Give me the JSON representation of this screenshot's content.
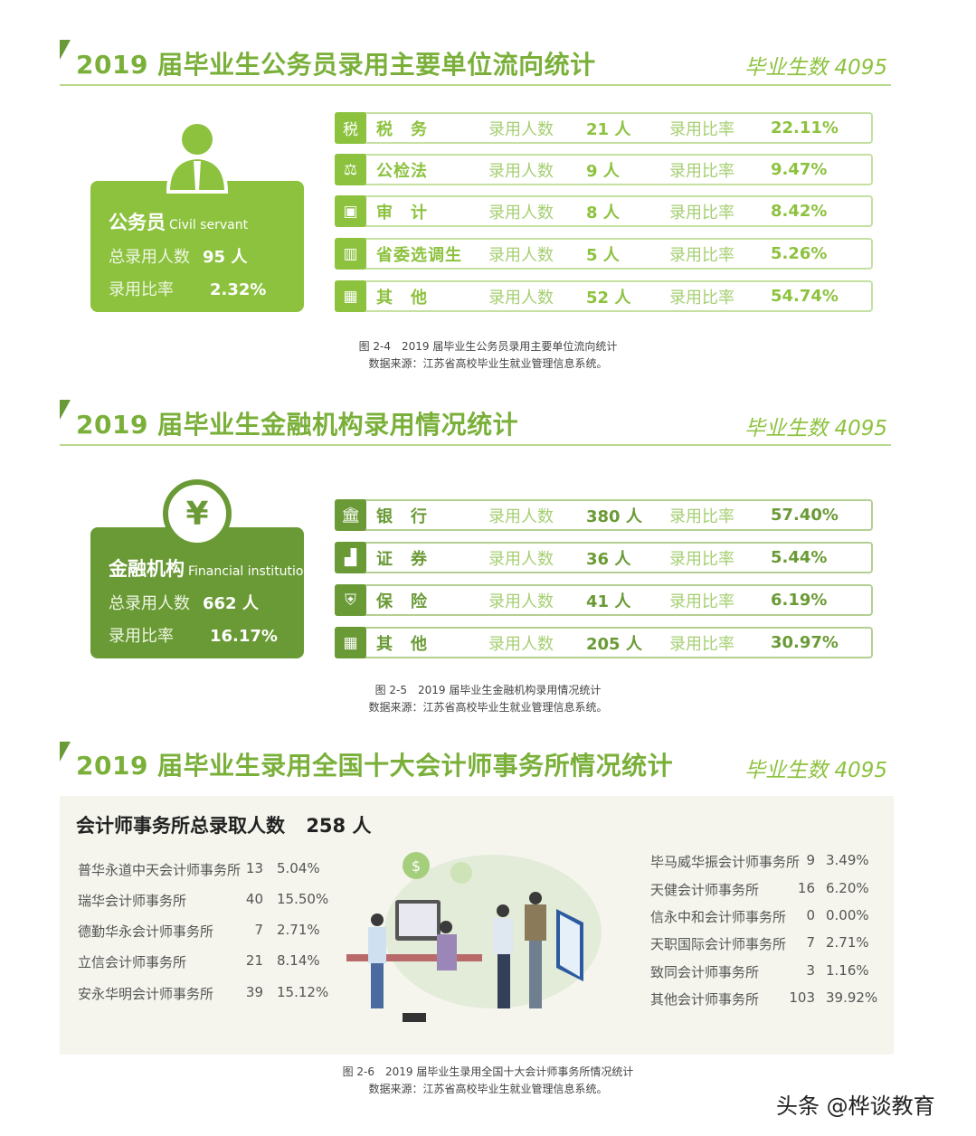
{
  "sections": [
    {
      "title": "2019 届毕业生公务员录用主要单位流向统计",
      "graduates": "毕业生数  4095",
      "summary": {
        "name": "公务员",
        "name_en": "Civil servant",
        "total_label": "总录用人数",
        "total": "95 人",
        "rate_label": "录用比率",
        "rate": "2.32%"
      },
      "rows": [
        {
          "icon": "tax-icon",
          "label": "税　务",
          "count_label": "录用人数",
          "count": "21 人",
          "rate_label": "录用比率",
          "rate": "22.11%"
        },
        {
          "icon": "scale-icon",
          "label": "公检法",
          "count_label": "录用人数",
          "count": "9 人",
          "rate_label": "录用比率",
          "rate": "9.47%"
        },
        {
          "icon": "audit-icon",
          "label": "审　计",
          "count_label": "录用人数",
          "count": "8 人",
          "rate_label": "录用比率",
          "rate": "8.42%"
        },
        {
          "icon": "books-icon",
          "label": "省委选调生",
          "count_label": "录用人数",
          "count": "5 人",
          "rate_label": "录用比率",
          "rate": "5.26%"
        },
        {
          "icon": "grid-icon",
          "label": "其　他",
          "count_label": "录用人数",
          "count": "52 人",
          "rate_label": "录用比率",
          "rate": "54.74%"
        }
      ],
      "caption": "图 2-4　2019 届毕业生公务员录用主要单位流向统计",
      "source": "数据来源：江苏省高校毕业生就业管理信息系统。"
    },
    {
      "title": "2019 届毕业生金融机构录用情况统计",
      "graduates": "毕业生数  4095",
      "summary": {
        "name": "金融机构",
        "name_en": "Financial institution",
        "total_label": "总录用人数",
        "total": "662 人",
        "rate_label": "录用比率",
        "rate": "16.17%"
      },
      "rows": [
        {
          "icon": "bank-icon",
          "label": "银　行",
          "count_label": "录用人数",
          "count": "380 人",
          "rate_label": "录用比率",
          "rate": "57.40%"
        },
        {
          "icon": "stock-chart-icon",
          "label": "证　券",
          "count_label": "录用人数",
          "count": "36 人",
          "rate_label": "录用比率",
          "rate": "5.44%"
        },
        {
          "icon": "shield-icon",
          "label": "保　险",
          "count_label": "录用人数",
          "count": "41 人",
          "rate_label": "录用比率",
          "rate": "6.19%"
        },
        {
          "icon": "grid-icon",
          "label": "其　他",
          "count_label": "录用人数",
          "count": "205 人",
          "rate_label": "录用比率",
          "rate": "30.97%"
        }
      ],
      "caption": "图 2-5　2019 届毕业生金融机构录用情况统计",
      "source": "数据来源：江苏省高校毕业生就业管理信息系统。"
    },
    {
      "title": "2019 届毕业生录用全国十大会计师事务所情况统计",
      "graduates": "毕业生数  4095",
      "total_label": "会计师事务所总录取人数",
      "total": "258 人",
      "left": [
        {
          "name": "普华永道中天会计师事务所",
          "count": "13",
          "pct": "5.04%"
        },
        {
          "name": "瑞华会计师事务所",
          "count": "40",
          "pct": "15.50%"
        },
        {
          "name": "德勤华永会计师事务所",
          "count": "7",
          "pct": "2.71%"
        },
        {
          "name": "立信会计师事务所",
          "count": "21",
          "pct": "8.14%"
        },
        {
          "name": "安永华明会计师事务所",
          "count": "39",
          "pct": "15.12%"
        }
      ],
      "right": [
        {
          "name": "毕马威华振会计师事务所",
          "count": "9",
          "pct": "3.49%"
        },
        {
          "name": "天健会计师事务所",
          "count": "16",
          "pct": "6.20%"
        },
        {
          "name": "信永中和会计师事务所",
          "count": "0",
          "pct": "0.00%"
        },
        {
          "name": "天职国际会计师事务所",
          "count": "7",
          "pct": "2.71%"
        },
        {
          "name": "致同会计师事务所",
          "count": "3",
          "pct": "1.16%"
        },
        {
          "name": "其他会计师事务所",
          "count": "103",
          "pct": "39.92%"
        }
      ],
      "caption": "图 2-6　2019 届毕业生录用全国十大会计师事务所情况统计",
      "source": "数据来源：江苏省高校毕业生就业管理信息系统。"
    }
  ],
  "watermark": "头条 @桦谈教育",
  "colors": {
    "light_green": "#8dc23f",
    "dark_green": "#6a9a35"
  }
}
